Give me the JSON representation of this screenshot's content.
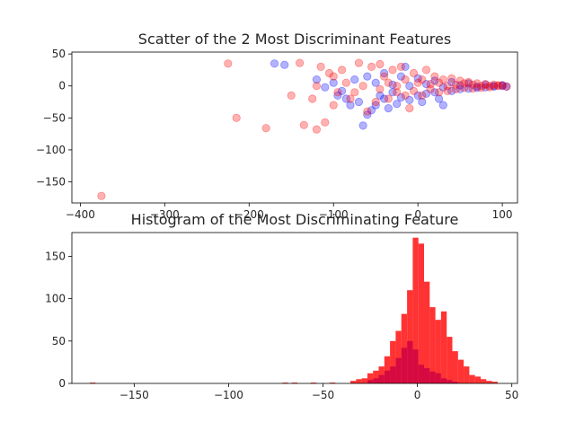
{
  "chart_data": [
    {
      "type": "scatter",
      "title": "Scatter of the 2 Most Discriminant Features",
      "xlabel": "",
      "ylabel": "",
      "xlim": [
        -410,
        118
      ],
      "ylim": [
        -183,
        53
      ],
      "xticks": [
        -400,
        -300,
        -200,
        -100,
        0,
        100
      ],
      "yticks": [
        50,
        0,
        -50,
        -100,
        -150
      ],
      "grid": false,
      "series": [
        {
          "color": "#0000ff",
          "alpha": 0.3,
          "points": [
            [
              -170,
              35
            ],
            [
              -158,
              33
            ],
            [
              -120,
              10
            ],
            [
              -110,
              -2
            ],
            [
              -100,
              5
            ],
            [
              -95,
              -15
            ],
            [
              -85,
              -20
            ],
            [
              -80,
              -30
            ],
            [
              -70,
              -25
            ],
            [
              -65,
              -62
            ],
            [
              -60,
              -45
            ],
            [
              -55,
              -38
            ],
            [
              -50,
              -30
            ],
            [
              -45,
              -15
            ],
            [
              -40,
              -20
            ],
            [
              -30,
              -10
            ],
            [
              -25,
              -28
            ],
            [
              -20,
              -18
            ],
            [
              -10,
              -22
            ],
            [
              0,
              -15
            ],
            [
              10,
              -12
            ],
            [
              20,
              -10
            ],
            [
              30,
              -30
            ],
            [
              40,
              -8
            ],
            [
              50,
              -5
            ],
            [
              60,
              -4
            ],
            [
              70,
              -3
            ],
            [
              80,
              -2
            ],
            [
              90,
              -1
            ],
            [
              100,
              0
            ],
            [
              -75,
              10
            ],
            [
              -60,
              15
            ],
            [
              -40,
              20
            ],
            [
              -20,
              15
            ],
            [
              0,
              12
            ],
            [
              20,
              8
            ],
            [
              40,
              6
            ],
            [
              60,
              4
            ],
            [
              80,
              2
            ],
            [
              100,
              1
            ],
            [
              -90,
              -8
            ],
            [
              -50,
              5
            ],
            [
              -30,
              2
            ],
            [
              -10,
              0
            ],
            [
              10,
              3
            ],
            [
              30,
              -2
            ],
            [
              50,
              1
            ],
            [
              70,
              -1
            ],
            [
              90,
              0
            ],
            [
              105,
              -1
            ],
            [
              -35,
              -35
            ],
            [
              5,
              -25
            ],
            [
              25,
              -20
            ],
            [
              -15,
              30
            ]
          ]
        },
        {
          "color": "#ff0000",
          "alpha": 0.3,
          "points": [
            [
              -375,
              -172
            ],
            [
              -225,
              35
            ],
            [
              -215,
              -50
            ],
            [
              -180,
              -66
            ],
            [
              -150,
              -15
            ],
            [
              -140,
              36
            ],
            [
              -135,
              -61
            ],
            [
              -120,
              -68
            ],
            [
              -115,
              30
            ],
            [
              -110,
              -57
            ],
            [
              -105,
              20
            ],
            [
              -100,
              -30
            ],
            [
              -90,
              25
            ],
            [
              -80,
              -20
            ],
            [
              -70,
              36
            ],
            [
              -60,
              -40
            ],
            [
              -55,
              30
            ],
            [
              -50,
              -25
            ],
            [
              -45,
              34
            ],
            [
              -40,
              15
            ],
            [
              -35,
              -20
            ],
            [
              -30,
              25
            ],
            [
              -25,
              -10
            ],
            [
              -20,
              30
            ],
            [
              -15,
              10
            ],
            [
              -10,
              -35
            ],
            [
              -5,
              20
            ],
            [
              0,
              5
            ],
            [
              5,
              -15
            ],
            [
              10,
              25
            ],
            [
              15,
              -5
            ],
            [
              20,
              15
            ],
            [
              25,
              -10
            ],
            [
              30,
              10
            ],
            [
              35,
              0
            ],
            [
              40,
              12
            ],
            [
              45,
              -5
            ],
            [
              50,
              8
            ],
            [
              55,
              -3
            ],
            [
              60,
              6
            ],
            [
              65,
              2
            ],
            [
              70,
              4
            ],
            [
              75,
              0
            ],
            [
              80,
              3
            ],
            [
              85,
              -2
            ],
            [
              90,
              2
            ],
            [
              95,
              0
            ],
            [
              100,
              1
            ],
            [
              105,
              -1
            ],
            [
              -85,
              5
            ],
            [
              -65,
              0
            ],
            [
              -45,
              -5
            ],
            [
              -25,
              0
            ],
            [
              -5,
              -8
            ],
            [
              15,
              3
            ],
            [
              35,
              -8
            ],
            [
              55,
              4
            ],
            [
              75,
              -3
            ],
            [
              95,
              1
            ],
            [
              -95,
              -10
            ],
            [
              -75,
              -10
            ],
            [
              -35,
              5
            ],
            [
              -15,
              -15
            ],
            [
              5,
              10
            ],
            [
              25,
              5
            ],
            [
              45,
              2
            ],
            [
              65,
              -4
            ],
            [
              85,
              0
            ],
            [
              -120,
              0
            ],
            [
              -125,
              -20
            ],
            [
              -100,
              15
            ]
          ]
        }
      ]
    },
    {
      "type": "histogram",
      "title": "Histogram of the Most Discriminating Feature",
      "xlabel": "",
      "ylabel": "",
      "xlim": [
        -183,
        53
      ],
      "ylim": [
        0,
        178
      ],
      "xticks": [
        -150,
        -100,
        -50,
        0,
        50
      ],
      "yticks": [
        0,
        50,
        100,
        150
      ],
      "grid": false,
      "series": [
        {
          "color": "#ff0000",
          "alpha": 0.8,
          "bin_width": 3,
          "bins": [
            [
              -172,
              1
            ],
            [
              -70,
              1
            ],
            [
              -65,
              1
            ],
            [
              -55,
              1
            ],
            [
              -45,
              1
            ],
            [
              -34,
              3
            ],
            [
              -31,
              5
            ],
            [
              -28,
              6
            ],
            [
              -25,
              12
            ],
            [
              -22,
              15
            ],
            [
              -19,
              20
            ],
            [
              -16,
              32
            ],
            [
              -13,
              50
            ],
            [
              -10,
              62
            ],
            [
              -7,
              82
            ],
            [
              -4,
              110
            ],
            [
              -1,
              172
            ],
            [
              2,
              165
            ],
            [
              5,
              120
            ],
            [
              8,
              90
            ],
            [
              11,
              75
            ],
            [
              14,
              85
            ],
            [
              17,
              55
            ],
            [
              20,
              38
            ],
            [
              23,
              28
            ],
            [
              26,
              20
            ],
            [
              29,
              10
            ],
            [
              32,
              8
            ],
            [
              35,
              5
            ],
            [
              38,
              3
            ],
            [
              41,
              2
            ]
          ]
        },
        {
          "color": "#cc0044",
          "alpha": 0.8,
          "bin_width": 3,
          "bins": [
            [
              -25,
              4
            ],
            [
              -22,
              6
            ],
            [
              -19,
              10
            ],
            [
              -16,
              15
            ],
            [
              -13,
              20
            ],
            [
              -10,
              30
            ],
            [
              -7,
              42
            ],
            [
              -4,
              50
            ],
            [
              -1,
              40
            ],
            [
              2,
              22
            ],
            [
              5,
              18
            ],
            [
              8,
              14
            ],
            [
              11,
              12
            ],
            [
              14,
              6
            ],
            [
              17,
              4
            ],
            [
              20,
              2
            ]
          ]
        }
      ]
    }
  ]
}
